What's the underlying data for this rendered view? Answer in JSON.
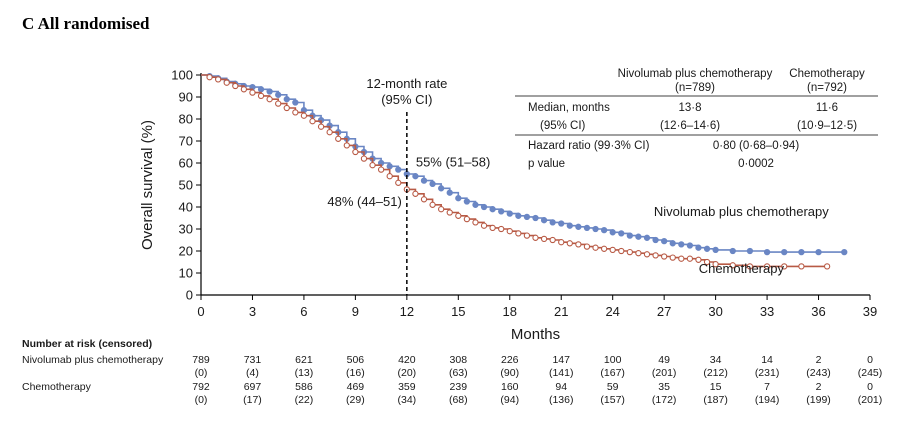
{
  "panel_title": "C All randomised",
  "chart_data": {
    "type": "line",
    "title": "",
    "xlabel": "Months",
    "ylabel": "Overall survival (%)",
    "xlim": [
      0,
      39
    ],
    "ylim": [
      0,
      100
    ],
    "x_ticks": [
      0,
      3,
      6,
      9,
      12,
      15,
      18,
      21,
      24,
      27,
      30,
      33,
      36,
      39
    ],
    "y_ticks": [
      0,
      10,
      20,
      30,
      40,
      50,
      60,
      70,
      80,
      90,
      100
    ],
    "grid": false,
    "series": [
      {
        "name": "Nivolumab plus chemotherapy",
        "color": "#6a86c4",
        "marker": "filled-circle",
        "label_position": [
          31.5,
          36
        ],
        "x": [
          0,
          0.5,
          1,
          1.5,
          2,
          2.5,
          3,
          3.5,
          4,
          4.5,
          5,
          5.5,
          6,
          6.5,
          7,
          7.5,
          8,
          8.5,
          9,
          9.5,
          10,
          10.5,
          11,
          11.5,
          12,
          12.5,
          13,
          13.5,
          14,
          14.5,
          15,
          15.5,
          16,
          16.5,
          17,
          17.5,
          18,
          18.5,
          19,
          19.5,
          20,
          20.5,
          21,
          21.5,
          22,
          22.5,
          23,
          23.5,
          24,
          24.5,
          25,
          25.5,
          26,
          26.5,
          27,
          27.5,
          28,
          28.5,
          29,
          29.5,
          30,
          31,
          32,
          33,
          34,
          35,
          36,
          37.5
        ],
        "y": [
          100,
          99.5,
          98.5,
          97,
          96,
          95,
          94.5,
          93.5,
          92.5,
          91,
          89,
          87.5,
          84,
          81.5,
          79.5,
          77,
          74,
          71,
          67.5,
          65,
          62,
          60,
          58.5,
          57,
          55,
          54,
          52,
          50.5,
          48.5,
          46.5,
          44,
          42.5,
          41,
          40,
          39,
          38,
          37,
          36,
          35.5,
          35,
          34,
          33,
          32.5,
          31.5,
          31,
          30.5,
          30,
          29.5,
          28.5,
          28,
          27,
          26.5,
          26,
          25,
          24.5,
          23.5,
          23,
          22.5,
          21.5,
          21,
          20.5,
          20,
          20,
          19.5,
          19.5,
          19.5,
          19.5,
          19.5
        ]
      },
      {
        "name": "Chemotherapy",
        "color": "#b85a45",
        "marker": "open-circle",
        "label_position": [
          31.5,
          10
        ],
        "x": [
          0,
          0.5,
          1,
          1.5,
          2,
          2.5,
          3,
          3.5,
          4,
          4.5,
          5,
          5.5,
          6,
          6.5,
          7,
          7.5,
          8,
          8.5,
          9,
          9.5,
          10,
          10.5,
          11,
          11.5,
          12,
          12.5,
          13,
          13.5,
          14,
          14.5,
          15,
          15.5,
          16,
          16.5,
          17,
          17.5,
          18,
          18.5,
          19,
          19.5,
          20,
          20.5,
          21,
          21.5,
          22,
          22.5,
          23,
          23.5,
          24,
          24.5,
          25,
          25.5,
          26,
          26.5,
          27,
          27.5,
          28,
          28.5,
          29,
          29.5,
          30,
          31,
          32,
          33,
          34,
          35,
          36.5
        ],
        "y": [
          100,
          99,
          98,
          96.5,
          95,
          93.5,
          92,
          90.5,
          89,
          87,
          85,
          83,
          81.5,
          79,
          76.5,
          74,
          71,
          68,
          65,
          62,
          59,
          57,
          54,
          51,
          48,
          46,
          43.5,
          41,
          39,
          37.5,
          36,
          34.5,
          33,
          31.5,
          30.5,
          30,
          29,
          28,
          27,
          26,
          25.5,
          25,
          24,
          23.5,
          23,
          22,
          21.5,
          21,
          20.5,
          20,
          19.5,
          19,
          18.5,
          18,
          17.5,
          17,
          16.5,
          16.5,
          16,
          15,
          14,
          13.5,
          13,
          13,
          13,
          13,
          13
        ]
      }
    ],
    "annotations": {
      "vline_x": 12,
      "rate_label_line1": "12-month rate",
      "rate_label_line2": "(95% CI)",
      "nivo_rate": "55% (51–58)",
      "chemo_rate": "48% (44–51)"
    },
    "stats_table": {
      "header_col1": "Nivolumab plus chemotherapy",
      "header_col1_n": "(n=789)",
      "header_col2": "Chemotherapy",
      "header_col2_n": "(n=792)",
      "median_label": "Median, months",
      "median_nivo": "13·8",
      "median_chemo": "11·6",
      "ci_label": "(95% CI)",
      "ci_nivo": "(12·6–14·6)",
      "ci_chemo": "(10·9–12·5)",
      "hr_label": "Hazard ratio (99·3% CI)",
      "hr_value": "0·80 (0·68–0·94)",
      "p_label": "p value",
      "p_value": "0·0002"
    },
    "risk_table": {
      "title": "Number at risk (censored)",
      "rows": [
        {
          "label": "Nivolumab plus chemotherapy",
          "at_risk": [
            "789",
            "731",
            "621",
            "506",
            "420",
            "308",
            "226",
            "147",
            "100",
            "49",
            "34",
            "14",
            "2",
            "0"
          ],
          "censored": [
            "(0)",
            "(4)",
            "(13)",
            "(16)",
            "(20)",
            "(63)",
            "(90)",
            "(141)",
            "(167)",
            "(201)",
            "(212)",
            "(231)",
            "(243)",
            "(245)"
          ]
        },
        {
          "label": "Chemotherapy",
          "at_risk": [
            "792",
            "697",
            "586",
            "469",
            "359",
            "239",
            "160",
            "94",
            "59",
            "35",
            "15",
            "7",
            "2",
            "0"
          ],
          "censored": [
            "(0)",
            "(17)",
            "(22)",
            "(29)",
            "(34)",
            "(68)",
            "(94)",
            "(136)",
            "(157)",
            "(172)",
            "(187)",
            "(194)",
            "(199)",
            "(201)"
          ]
        }
      ]
    }
  }
}
